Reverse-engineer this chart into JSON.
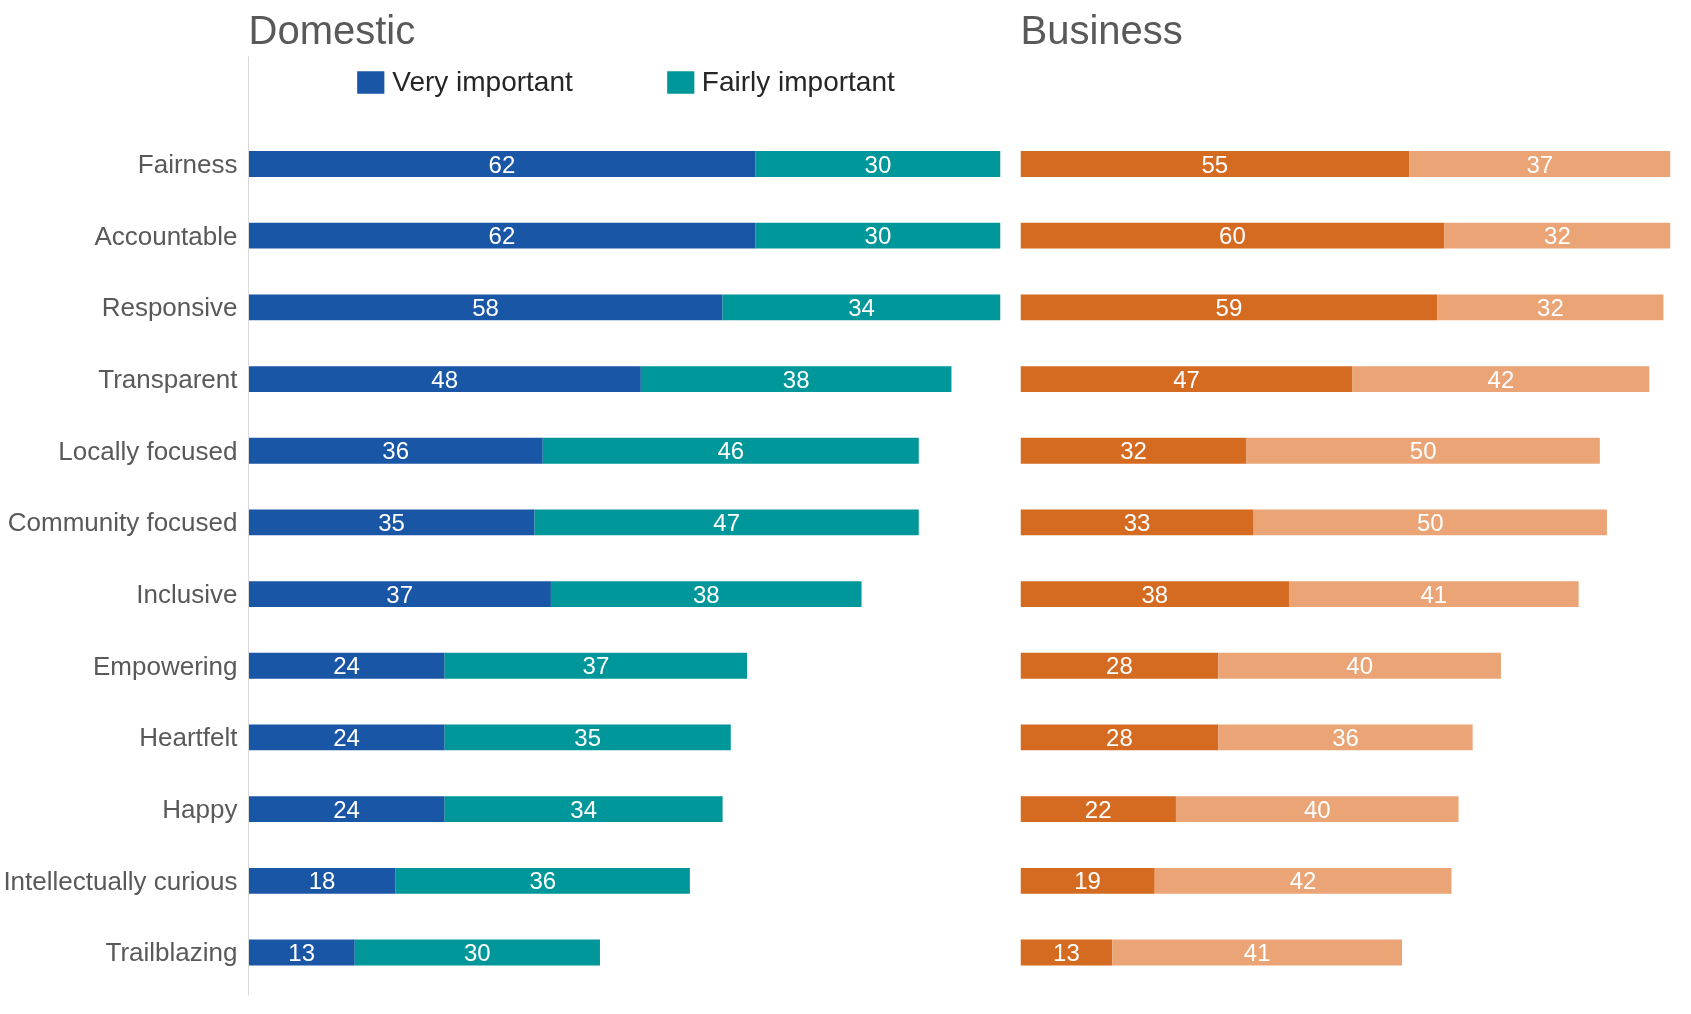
{
  "chart_data": [
    {
      "type": "bar",
      "title": "Domestic",
      "orientation": "horizontal",
      "stacked": true,
      "data_labels": true,
      "legend": "top",
      "tick_labels": "y",
      "xlim": [
        0,
        92
      ],
      "categories": [
        "Fairness",
        "Accountable",
        "Responsive",
        "Transparent",
        "Locally focused",
        "Community focused",
        "Inclusive",
        "Empowering",
        "Heartfelt",
        "Happy",
        "Intellectually curious",
        "Trailblazing"
      ],
      "series": [
        {
          "name": "Very important",
          "color": "#1a56a6",
          "values": [
            62,
            62,
            58,
            48,
            36,
            35,
            37,
            24,
            24,
            24,
            18,
            13
          ]
        },
        {
          "name": "Fairly important",
          "color": "#00979a",
          "values": [
            30,
            30,
            34,
            38,
            46,
            47,
            38,
            37,
            35,
            34,
            36,
            30
          ]
        }
      ]
    },
    {
      "type": "bar",
      "title": "Business",
      "orientation": "horizontal",
      "stacked": true,
      "data_labels": true,
      "tick_labels": false,
      "xlim": [
        0,
        92
      ],
      "categories": [
        null,
        null,
        null,
        null,
        null,
        null,
        null,
        null,
        null,
        null,
        null,
        null
      ],
      "series": [
        {
          "color": "#d56a21",
          "values": [
            55,
            60,
            59,
            47,
            32,
            33,
            38,
            28,
            28,
            22,
            19,
            13
          ]
        },
        {
          "color": "#eba476",
          "values": [
            37,
            32,
            32,
            42,
            50,
            50,
            41,
            40,
            36,
            40,
            42,
            41
          ]
        }
      ]
    }
  ]
}
